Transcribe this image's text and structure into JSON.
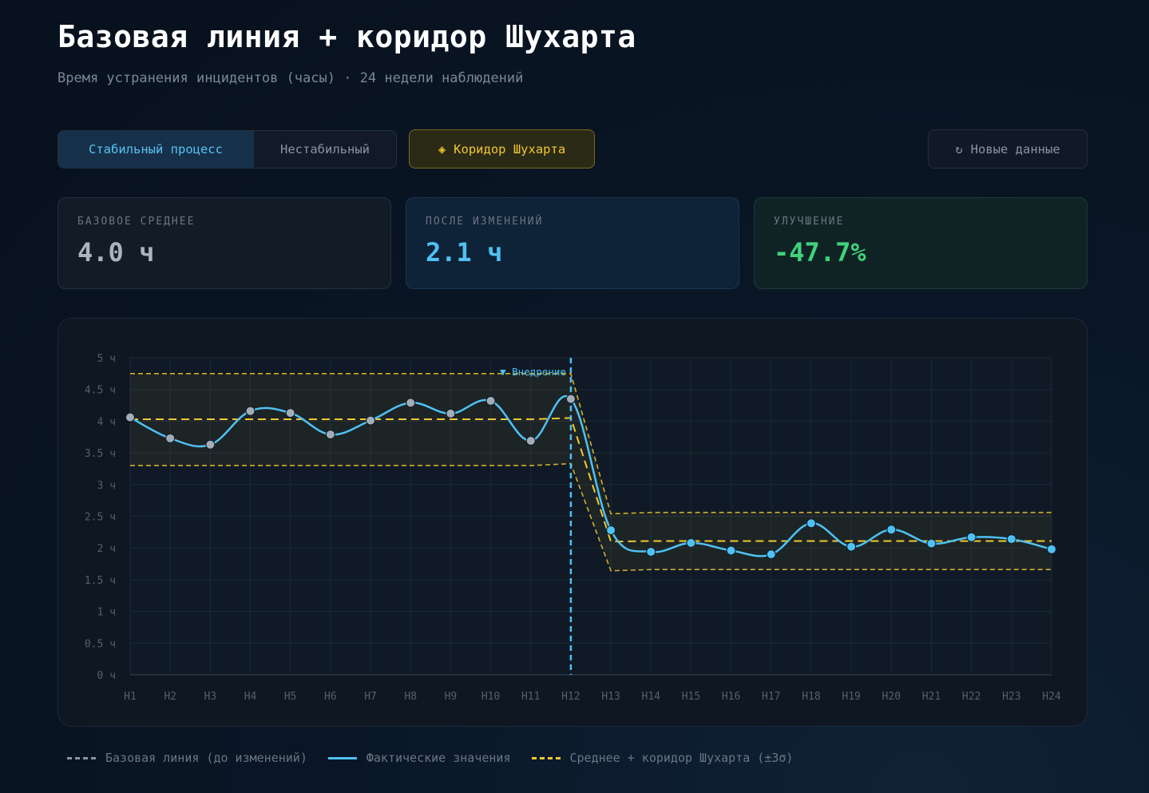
{
  "header": {
    "title": "Базовая линия + коридор Шухарта",
    "subtitle": "Время устранения инцидентов (часы) · 24 недели наблюдений"
  },
  "controls": {
    "stable_label": "Стабильный процесс",
    "unstable_label": "Нестабильный",
    "corridor_label": "Коридор Шухарта",
    "corridor_icon": "diamond-icon",
    "new_data_label": "Новые данные",
    "new_data_icon": "refresh-icon",
    "active_mode": "Стабильный процесс"
  },
  "stats": {
    "baseline": {
      "label": "БАЗОВОЕ СРЕДНЕЕ",
      "value": "4.0 ч"
    },
    "after": {
      "label": "ПОСЛЕ ИЗМЕНЕНИЙ",
      "value": "2.1 ч"
    },
    "improvement": {
      "label": "УЛУЧШЕНИЕ",
      "value": "-47.7%"
    }
  },
  "legend": {
    "baseline": "Базовая линия (до изменений)",
    "actual": "Фактические значения",
    "mean": "Среднее + коридор Шухарта (±3σ)"
  },
  "colors": {
    "actual": "#4fc1f2",
    "baseline_points": "#a3adb8",
    "mean": "#f2c830",
    "grid": "#1c2836"
  },
  "chart_data": {
    "type": "line",
    "categories": [
      "Н1",
      "Н2",
      "Н3",
      "Н4",
      "Н5",
      "Н6",
      "Н7",
      "Н8",
      "Н9",
      "Н10",
      "Н11",
      "Н12",
      "Н13",
      "Н14",
      "Н15",
      "Н16",
      "Н17",
      "Н18",
      "Н19",
      "Н20",
      "Н21",
      "Н22",
      "Н23",
      "Н24"
    ],
    "values": [
      4.06,
      3.73,
      3.63,
      4.16,
      4.13,
      3.79,
      4.01,
      4.29,
      4.12,
      4.32,
      3.69,
      4.35,
      2.28,
      1.94,
      2.08,
      1.96,
      1.9,
      2.39,
      2.02,
      2.29,
      2.07,
      2.17,
      2.14,
      1.98
    ],
    "mean": [
      4.03,
      4.03,
      4.03,
      4.03,
      4.03,
      4.03,
      4.03,
      4.03,
      4.03,
      4.03,
      4.03,
      4.05,
      2.1,
      2.11,
      2.11,
      2.11,
      2.11,
      2.11,
      2.11,
      2.11,
      2.11,
      2.11,
      2.11,
      2.11
    ],
    "ucl": [
      4.75,
      4.75,
      4.75,
      4.75,
      4.75,
      4.75,
      4.75,
      4.75,
      4.75,
      4.75,
      4.75,
      4.75,
      2.54,
      2.56,
      2.56,
      2.56,
      2.56,
      2.56,
      2.56,
      2.56,
      2.56,
      2.56,
      2.56,
      2.56
    ],
    "lcl": [
      3.3,
      3.3,
      3.3,
      3.3,
      3.3,
      3.3,
      3.3,
      3.3,
      3.3,
      3.3,
      3.3,
      3.33,
      1.64,
      1.66,
      1.66,
      1.66,
      1.66,
      1.66,
      1.66,
      1.66,
      1.66,
      1.66,
      1.66,
      1.66
    ],
    "baseline_count": 12,
    "intervention_index": 11,
    "intervention_label": "▼ Внедрение",
    "y_ticks": [
      "0 ч",
      "0.5 ч",
      "1 ч",
      "1.5 ч",
      "2 ч",
      "2.5 ч",
      "3 ч",
      "3.5 ч",
      "4 ч",
      "4.5 ч",
      "5 ч"
    ],
    "ylim": [
      0,
      5
    ],
    "grid": true,
    "legend_position": "bottom-left"
  }
}
